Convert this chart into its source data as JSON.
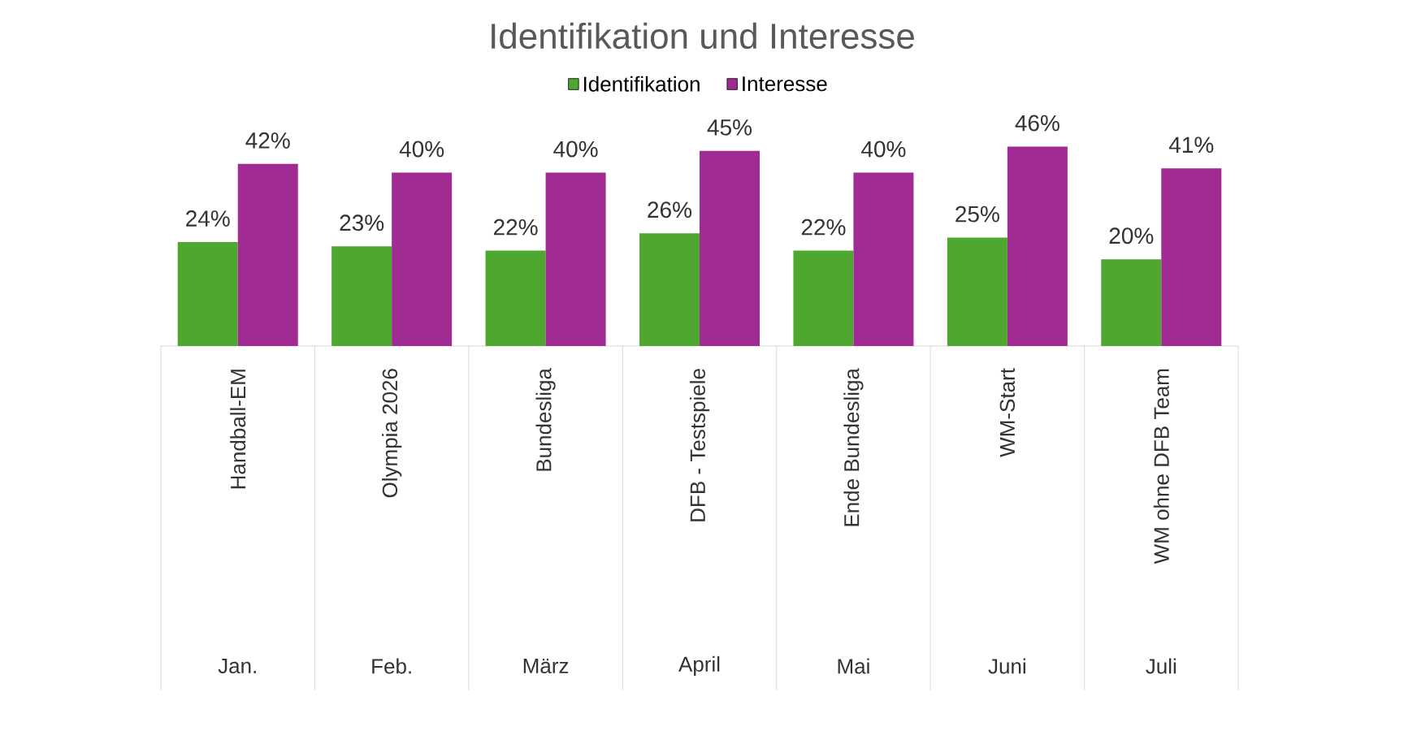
{
  "chart_data": {
    "type": "bar",
    "title": "Identifikation und Interesse",
    "categories": [
      "Handball-EM",
      "Olympia 2026",
      "Bundesliga",
      "DFB - Testspiele",
      "Ende Bundesliga",
      "WM-Start",
      "WM ohne DFB Team"
    ],
    "series": [
      {
        "name": "Identifikation",
        "color": "#4ea72e",
        "values": [
          24,
          23,
          22,
          26,
          22,
          25,
          20
        ],
        "value_labels": [
          "24%",
          "23%",
          "22%",
          "26%",
          "22%",
          "25%",
          "20%"
        ]
      },
      {
        "name": "Interesse",
        "color": "#a02b93",
        "values": [
          42,
          40,
          40,
          45,
          40,
          46,
          41
        ],
        "value_labels": [
          "42%",
          "40%",
          "40%",
          "45%",
          "40%",
          "46%",
          "41%"
        ]
      }
    ],
    "annotations": [
      "Jan.",
      "Feb.",
      "März",
      "April",
      "Mai",
      "Juni",
      "Juli"
    ],
    "legend": "top"
  }
}
